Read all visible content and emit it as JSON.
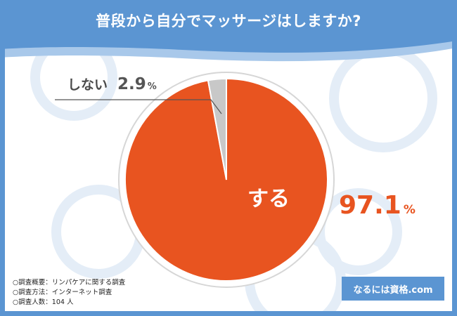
{
  "title": "普段から自分でマッサージはしますか?",
  "chart_data": {
    "type": "pie",
    "title": "普段から自分でマッサージはしますか?",
    "slices": [
      {
        "label": "する",
        "value": 97.1,
        "color": "#e85420"
      },
      {
        "label": "しない",
        "value": 2.9,
        "color": "#c8c8c8"
      }
    ],
    "value_labels": [
      "97.1",
      "2.9"
    ],
    "unit": "%"
  },
  "notes": [
    "○調査概要：リンパケアに関する調査",
    "○調査方法：インターネット調査",
    "○調査人数：104 人"
  ],
  "brand": "なるには資格.com",
  "colors": {
    "header": "#5b95d2",
    "accent": "#e85420",
    "minor": "#c8c8c8"
  }
}
